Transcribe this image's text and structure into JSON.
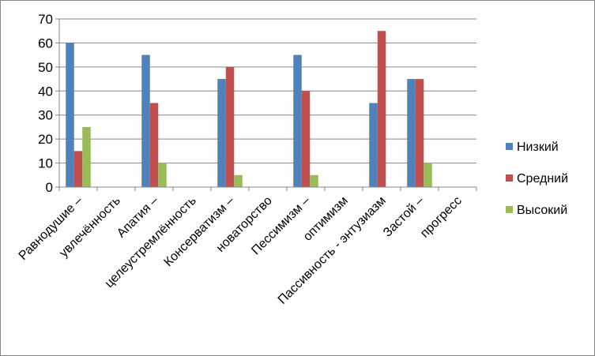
{
  "chart_data": {
    "type": "bar",
    "categories": [
      "Равнодушие –",
      "увлечённость",
      "Апатия –",
      "целеустремлённость",
      "Консерватизм –",
      "новаторство",
      "Пессимизм –",
      "оптимизм",
      "Пассивность - энтузиазм",
      "Застой –",
      "прогресс"
    ],
    "series": [
      {
        "name": "Низкий",
        "color": "#4F81BD",
        "values": [
          60,
          null,
          55,
          null,
          45,
          null,
          55,
          null,
          35,
          45,
          null
        ]
      },
      {
        "name": "Средний",
        "color": "#C0504D",
        "values": [
          15,
          null,
          35,
          null,
          50,
          null,
          40,
          null,
          65,
          45,
          null
        ]
      },
      {
        "name": "Высокий",
        "color": "#9BBB59",
        "values": [
          25,
          null,
          10,
          null,
          5,
          null,
          5,
          null,
          null,
          10,
          null
        ]
      }
    ],
    "ylim": [
      0,
      70
    ],
    "yticks": [
      0,
      10,
      20,
      30,
      40,
      50,
      60,
      70
    ],
    "grid": true,
    "legend": "right"
  }
}
